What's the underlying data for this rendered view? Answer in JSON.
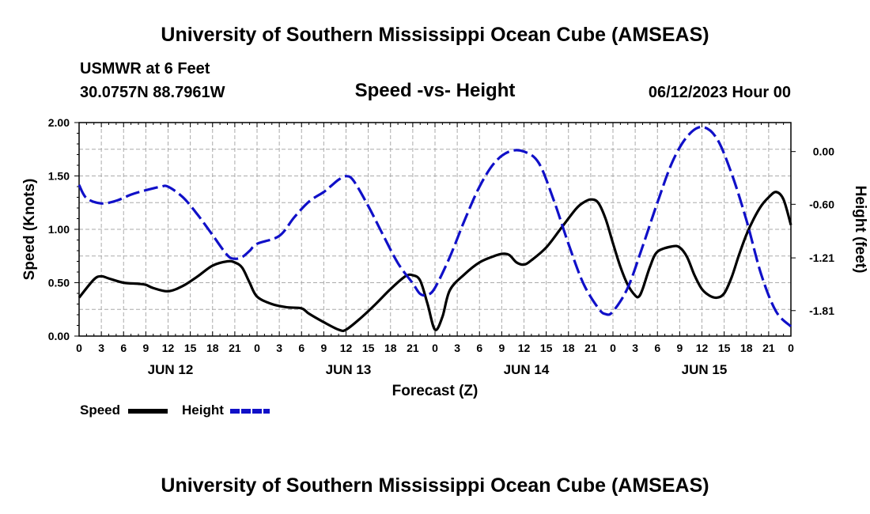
{
  "page_title": "University of Southern Mississippi Ocean Cube (AMSEAS)",
  "footer_title": "University of Southern Mississippi Ocean Cube (AMSEAS)",
  "station": {
    "name": "USMWR at 6 Feet",
    "coords": "30.0757N  88.7961W"
  },
  "date_label": "06/12/2023 Hour 00",
  "colors": {
    "speed": "#000000",
    "height": "#1010c8",
    "grid": "#aaaaaa"
  },
  "chart_data": {
    "type": "line",
    "title": "Speed -vs- Height",
    "xlabel": "Forecast (Z)",
    "ylabel": "Speed (Knots)",
    "y2label": "Height (feet)",
    "x_range": [
      0,
      96
    ],
    "ylim": [
      0,
      2.0
    ],
    "y2lim": [
      -2.1,
      0.33
    ],
    "x_tick_labels": [
      "0",
      "3",
      "6",
      "9",
      "12",
      "15",
      "18",
      "21",
      "0",
      "3",
      "6",
      "9",
      "12",
      "15",
      "18",
      "21",
      "0",
      "3",
      "6",
      "9",
      "12",
      "15",
      "18",
      "21",
      "0",
      "3",
      "6",
      "9",
      "12",
      "15",
      "18",
      "21",
      "0"
    ],
    "y_tick_labels": [
      "0.00",
      "0.50",
      "1.00",
      "1.50",
      "2.00"
    ],
    "y_ticks": [
      0,
      0.5,
      1.0,
      1.5,
      2.0
    ],
    "y2_tick_labels": [
      "0.00",
      "-0.60",
      "-1.21",
      "-1.81"
    ],
    "y2_ticks": [
      0.0,
      -0.6,
      -1.21,
      -1.81
    ],
    "day_labels": [
      {
        "label": "JUN 12",
        "hour": 12
      },
      {
        "label": "JUN 13",
        "hour": 36
      },
      {
        "label": "JUN 14",
        "hour": 60
      },
      {
        "label": "JUN 15",
        "hour": 84
      }
    ],
    "series": [
      {
        "name": "Speed",
        "axis": "left",
        "style": "solid",
        "points": [
          [
            0,
            0.36
          ],
          [
            2,
            0.53
          ],
          [
            3,
            0.56
          ],
          [
            4,
            0.54
          ],
          [
            6,
            0.5
          ],
          [
            8,
            0.49
          ],
          [
            9,
            0.48
          ],
          [
            10,
            0.45
          ],
          [
            12,
            0.42
          ],
          [
            14,
            0.47
          ],
          [
            16,
            0.56
          ],
          [
            18,
            0.66
          ],
          [
            20,
            0.7
          ],
          [
            21,
            0.69
          ],
          [
            22,
            0.64
          ],
          [
            23,
            0.5
          ],
          [
            24,
            0.37
          ],
          [
            26,
            0.3
          ],
          [
            28,
            0.27
          ],
          [
            30,
            0.26
          ],
          [
            31,
            0.21
          ],
          [
            33,
            0.13
          ],
          [
            35,
            0.06
          ],
          [
            36,
            0.06
          ],
          [
            38,
            0.17
          ],
          [
            40,
            0.3
          ],
          [
            42,
            0.44
          ],
          [
            44,
            0.56
          ],
          [
            45,
            0.57
          ],
          [
            46,
            0.52
          ],
          [
            47,
            0.3
          ],
          [
            48,
            0.06
          ],
          [
            49,
            0.18
          ],
          [
            50,
            0.43
          ],
          [
            52,
            0.58
          ],
          [
            54,
            0.69
          ],
          [
            56,
            0.75
          ],
          [
            57,
            0.77
          ],
          [
            58,
            0.76
          ],
          [
            59,
            0.69
          ],
          [
            60,
            0.67
          ],
          [
            61,
            0.71
          ],
          [
            63,
            0.83
          ],
          [
            65,
            1.01
          ],
          [
            67,
            1.19
          ],
          [
            68,
            1.25
          ],
          [
            69,
            1.28
          ],
          [
            70,
            1.25
          ],
          [
            71,
            1.1
          ],
          [
            72,
            0.87
          ],
          [
            73,
            0.65
          ],
          [
            74,
            0.48
          ],
          [
            75,
            0.38
          ],
          [
            75.5,
            0.37
          ],
          [
            76,
            0.44
          ],
          [
            77,
            0.65
          ],
          [
            78,
            0.79
          ],
          [
            80,
            0.84
          ],
          [
            81,
            0.83
          ],
          [
            82,
            0.74
          ],
          [
            83,
            0.57
          ],
          [
            84,
            0.44
          ],
          [
            85,
            0.38
          ],
          [
            86,
            0.36
          ],
          [
            87,
            0.4
          ],
          [
            88,
            0.55
          ],
          [
            89,
            0.76
          ],
          [
            90,
            0.95
          ],
          [
            91,
            1.1
          ],
          [
            92,
            1.22
          ],
          [
            93,
            1.3
          ],
          [
            94,
            1.35
          ],
          [
            95,
            1.28
          ],
          [
            96,
            1.04
          ]
        ]
      },
      {
        "name": "Height",
        "axis": "right",
        "style": "dashed",
        "points": [
          [
            0,
            -0.38
          ],
          [
            1,
            -0.53
          ],
          [
            3,
            -0.59
          ],
          [
            5,
            -0.56
          ],
          [
            7,
            -0.49
          ],
          [
            9,
            -0.44
          ],
          [
            11,
            -0.4
          ],
          [
            12,
            -0.4
          ],
          [
            14,
            -0.52
          ],
          [
            16,
            -0.72
          ],
          [
            18,
            -0.95
          ],
          [
            20,
            -1.18
          ],
          [
            21,
            -1.22
          ],
          [
            22,
            -1.2
          ],
          [
            23,
            -1.13
          ],
          [
            24,
            -1.05
          ],
          [
            27,
            -0.96
          ],
          [
            29,
            -0.75
          ],
          [
            31,
            -0.57
          ],
          [
            33,
            -0.46
          ],
          [
            34,
            -0.39
          ],
          [
            35,
            -0.32
          ],
          [
            36,
            -0.28
          ],
          [
            37,
            -0.33
          ],
          [
            39,
            -0.62
          ],
          [
            41,
            -0.95
          ],
          [
            43,
            -1.27
          ],
          [
            45,
            -1.5
          ],
          [
            46,
            -1.62
          ],
          [
            47,
            -1.63
          ],
          [
            48,
            -1.55
          ],
          [
            50,
            -1.2
          ],
          [
            52,
            -0.78
          ],
          [
            54,
            -0.4
          ],
          [
            56,
            -0.13
          ],
          [
            58,
            0.0
          ],
          [
            60,
            0.0
          ],
          [
            62,
            -0.13
          ],
          [
            64,
            -0.55
          ],
          [
            66,
            -1.05
          ],
          [
            68,
            -1.5
          ],
          [
            70,
            -1.78
          ],
          [
            71,
            -1.85
          ],
          [
            72,
            -1.82
          ],
          [
            74,
            -1.55
          ],
          [
            76,
            -1.08
          ],
          [
            78,
            -0.58
          ],
          [
            80,
            -0.12
          ],
          [
            82,
            0.17
          ],
          [
            84,
            0.28
          ],
          [
            86,
            0.15
          ],
          [
            88,
            -0.25
          ],
          [
            90,
            -0.78
          ],
          [
            92,
            -1.4
          ],
          [
            94,
            -1.82
          ],
          [
            96,
            -1.99
          ]
        ]
      }
    ],
    "legend": [
      {
        "label": "Speed"
      },
      {
        "label": "Height"
      }
    ]
  }
}
